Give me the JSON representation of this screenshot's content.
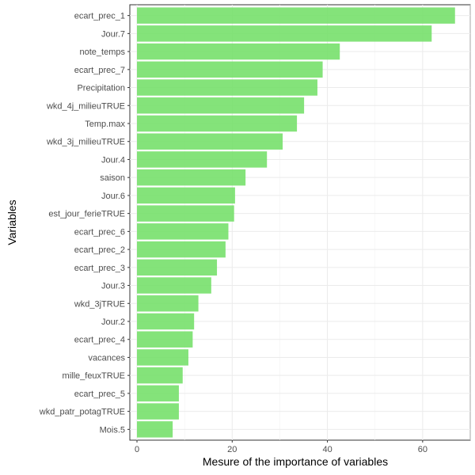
{
  "chart_data": {
    "type": "bar",
    "orientation": "horizontal",
    "xlabel": "Mesure of the importance of variables",
    "ylabel": "Variables",
    "xlim": [
      -1.5,
      70
    ],
    "xticks": [
      0,
      20,
      40,
      60
    ],
    "grid": true,
    "bar_color": "#77E06C",
    "categories": [
      "ecart_prec_1",
      "Jour.7",
      "note_temps",
      "ecart_prec_7",
      "Precipitation",
      "wkd_4j_milieuTRUE",
      "Temp.max",
      "wkd_3j_milieuTRUE",
      "Jour.4",
      "saison",
      "Jour.6",
      "est_jour_ferieTRUE",
      "ecart_prec_6",
      "ecart_prec_2",
      "ecart_prec_3",
      "Jour.3",
      "wkd_3jTRUE",
      "Jour.2",
      "ecart_prec_4",
      "vacances",
      "mille_feuxTRUE",
      "ecart_prec_5",
      "wkd_patr_potagTRUE",
      "Mois.5"
    ],
    "values": [
      66.8,
      61.9,
      42.6,
      39.0,
      37.9,
      35.1,
      33.6,
      30.6,
      27.3,
      22.8,
      20.6,
      20.4,
      19.2,
      18.6,
      16.8,
      15.6,
      12.9,
      12.0,
      11.7,
      10.8,
      9.6,
      8.8,
      8.8,
      7.5
    ]
  }
}
